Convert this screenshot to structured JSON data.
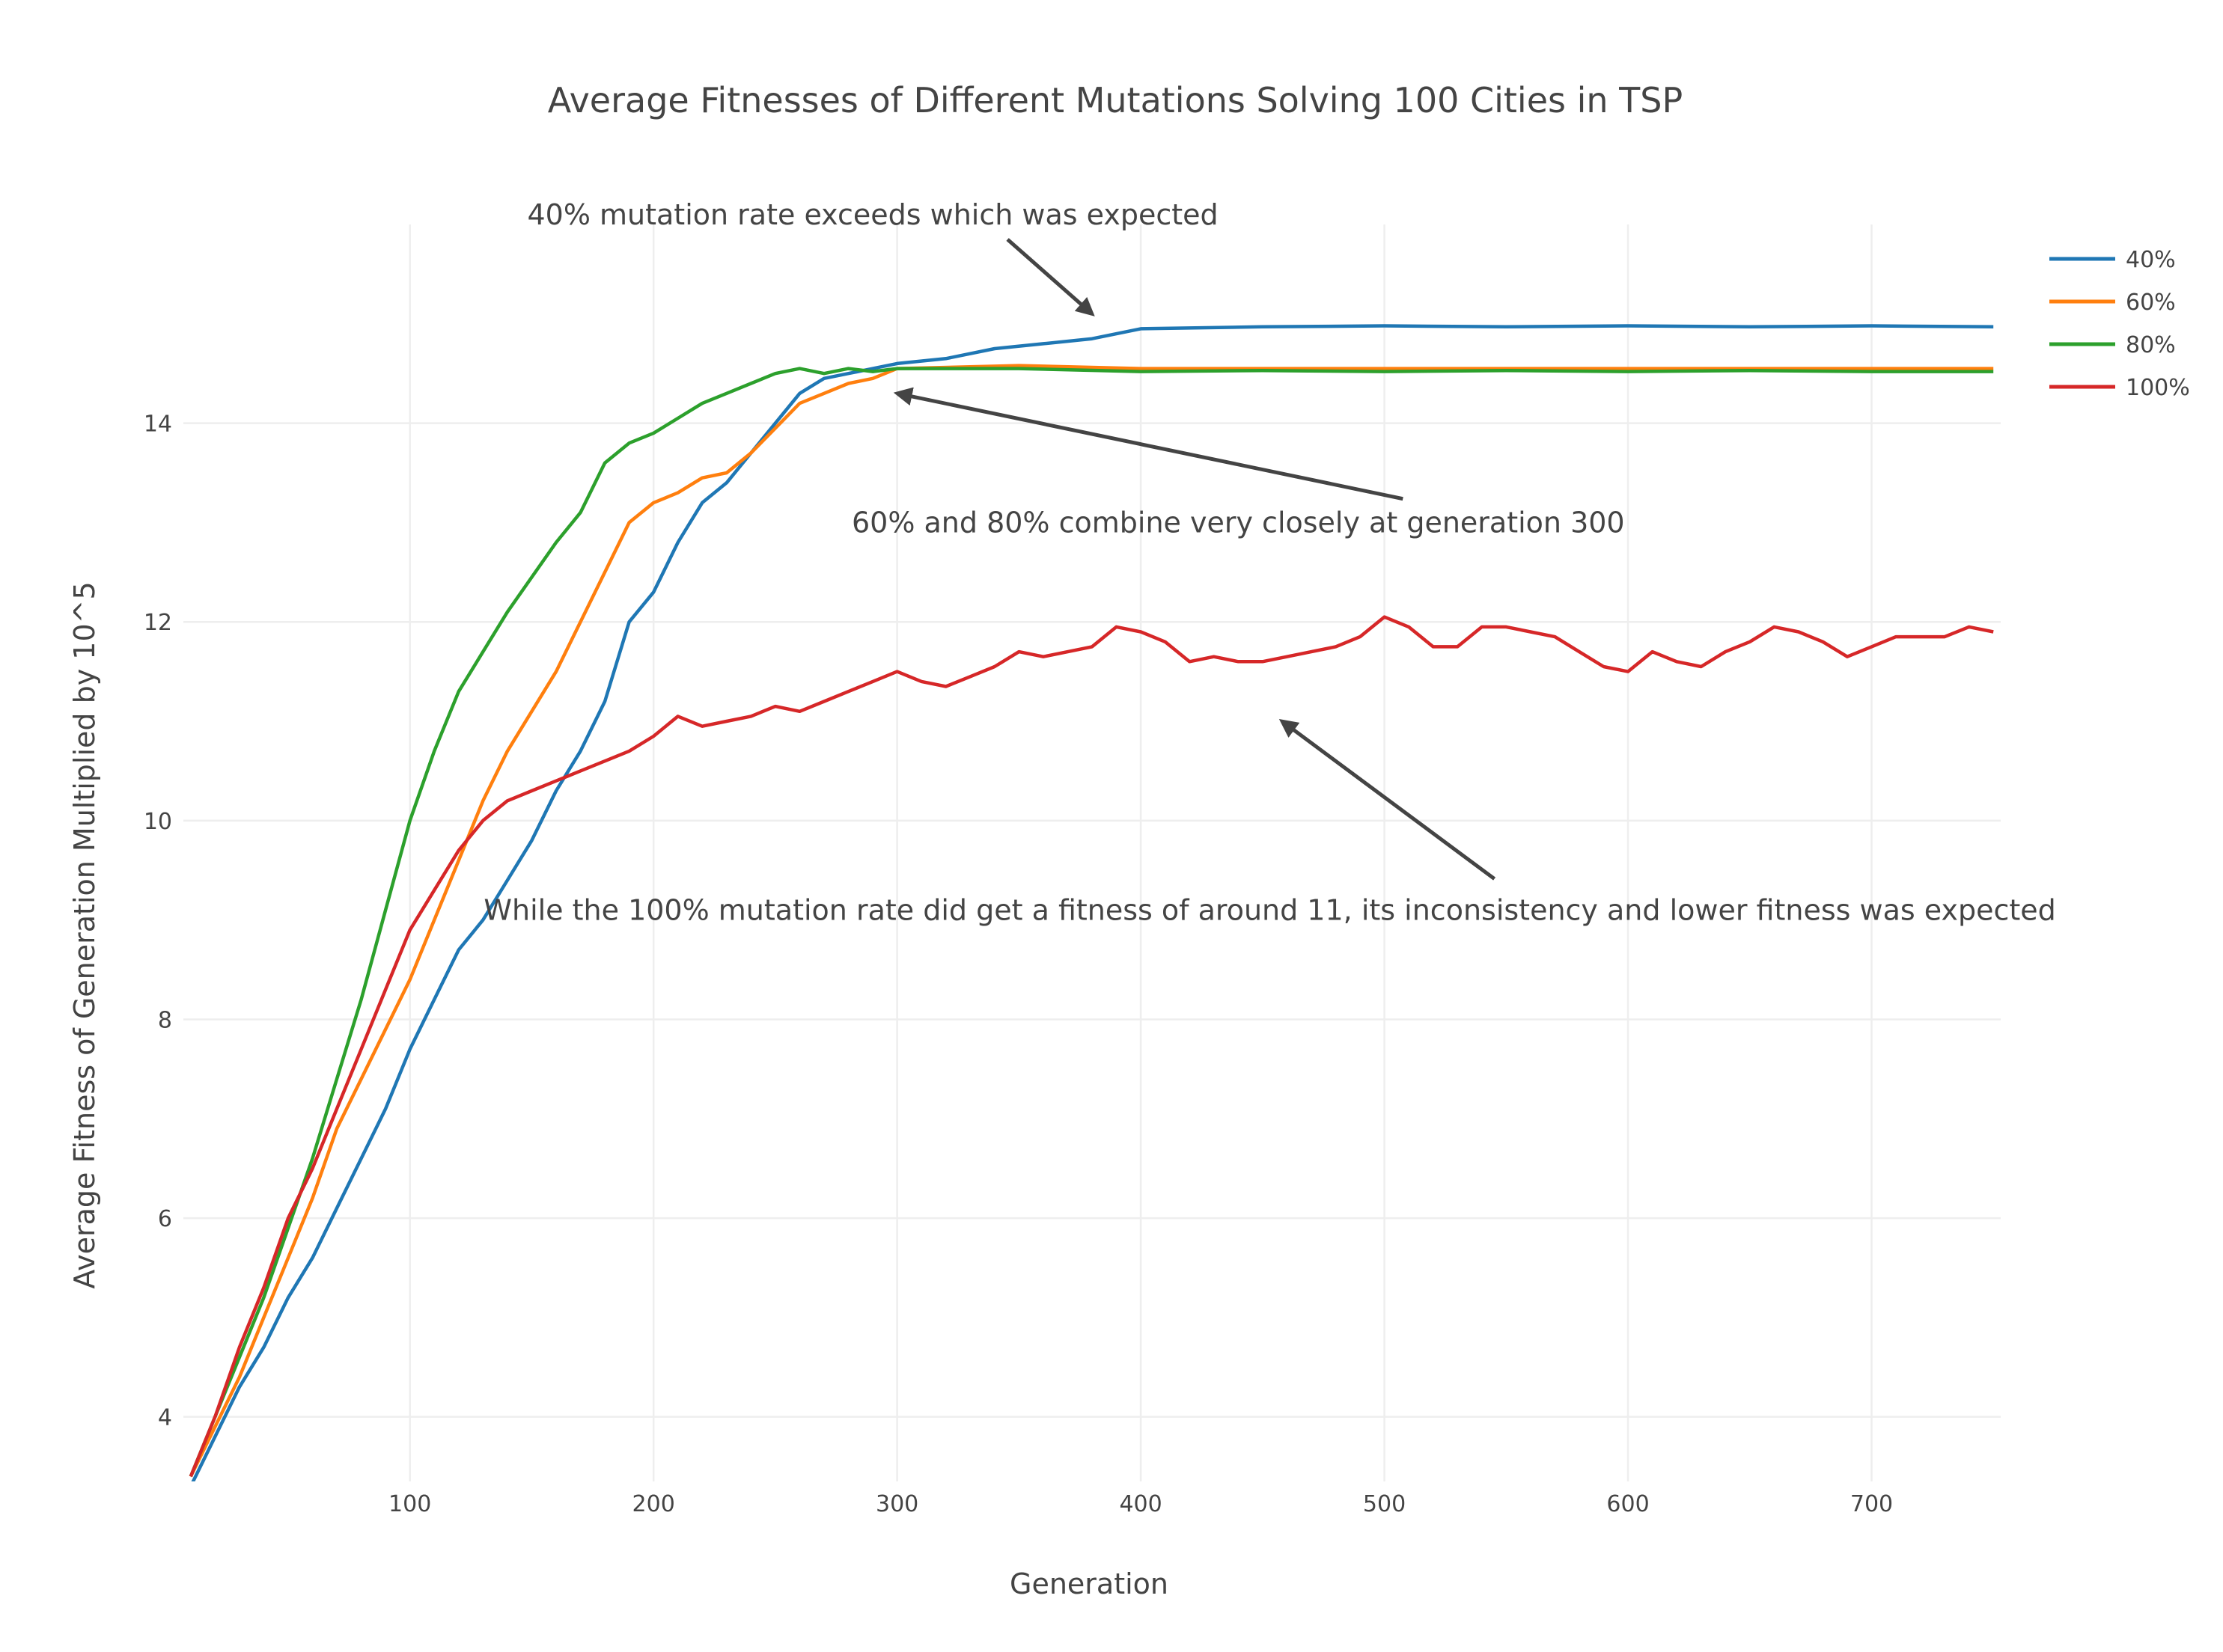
{
  "chart_data": {
    "type": "line",
    "title": "Average Fitnesses of Different Mutations Solving 100 Cities in TSP",
    "xlabel": "Generation",
    "ylabel": "Average Fitness of Generation Multiplied by 10^5",
    "xlim": [
      7,
      753
    ],
    "ylim": [
      3.35,
      16.0
    ],
    "xticks": [
      100,
      200,
      300,
      400,
      500,
      600,
      700
    ],
    "yticks": [
      4,
      6,
      8,
      10,
      12,
      14
    ],
    "xtick_labels": [
      "100",
      "200",
      "300",
      "400",
      "500",
      "600",
      "700"
    ],
    "ytick_labels": [
      "4",
      "6",
      "8",
      "10",
      "12",
      "14"
    ],
    "grid": true,
    "legend_position": "top-right",
    "series": [
      {
        "name": "40%",
        "color": "#1f77b4",
        "x": [
          10,
          20,
          30,
          40,
          50,
          60,
          70,
          80,
          90,
          100,
          110,
          120,
          130,
          140,
          150,
          160,
          170,
          180,
          190,
          200,
          210,
          220,
          230,
          240,
          250,
          260,
          270,
          280,
          290,
          300,
          320,
          340,
          360,
          380,
          400,
          450,
          500,
          550,
          600,
          650,
          700,
          750
        ],
        "y": [
          3.3,
          3.8,
          4.3,
          4.7,
          5.2,
          5.6,
          6.1,
          6.6,
          7.1,
          7.7,
          8.2,
          8.7,
          9.0,
          9.4,
          9.8,
          10.3,
          10.7,
          11.2,
          12.0,
          12.3,
          12.8,
          13.2,
          13.4,
          13.7,
          14.0,
          14.3,
          14.45,
          14.5,
          14.55,
          14.6,
          14.65,
          14.75,
          14.8,
          14.85,
          14.95,
          14.97,
          14.98,
          14.97,
          14.98,
          14.97,
          14.98,
          14.97
        ]
      },
      {
        "name": "60%",
        "color": "#ff7f0e",
        "x": [
          10,
          20,
          30,
          40,
          50,
          60,
          70,
          80,
          90,
          100,
          110,
          120,
          130,
          140,
          150,
          160,
          170,
          180,
          190,
          200,
          210,
          220,
          230,
          240,
          250,
          260,
          270,
          280,
          290,
          300,
          350,
          400,
          450,
          500,
          550,
          600,
          650,
          700,
          750
        ],
        "y": [
          3.4,
          3.9,
          4.4,
          5.0,
          5.6,
          6.2,
          6.9,
          7.4,
          7.9,
          8.4,
          9.0,
          9.6,
          10.2,
          10.7,
          11.1,
          11.5,
          12.0,
          12.5,
          13.0,
          13.2,
          13.3,
          13.45,
          13.5,
          13.7,
          13.95,
          14.2,
          14.3,
          14.4,
          14.45,
          14.55,
          14.58,
          14.55,
          14.55,
          14.55,
          14.55,
          14.55,
          14.55,
          14.55,
          14.55
        ]
      },
      {
        "name": "80%",
        "color": "#2ca02c",
        "x": [
          10,
          20,
          30,
          40,
          50,
          60,
          70,
          80,
          90,
          100,
          110,
          120,
          130,
          140,
          150,
          160,
          170,
          180,
          190,
          200,
          210,
          220,
          230,
          240,
          250,
          260,
          270,
          280,
          290,
          300,
          350,
          400,
          450,
          500,
          550,
          600,
          650,
          700,
          750
        ],
        "y": [
          3.4,
          4.0,
          4.6,
          5.2,
          5.9,
          6.6,
          7.4,
          8.2,
          9.1,
          10.0,
          10.7,
          11.3,
          11.7,
          12.1,
          12.45,
          12.8,
          13.1,
          13.6,
          13.8,
          13.9,
          14.05,
          14.2,
          14.3,
          14.4,
          14.5,
          14.55,
          14.5,
          14.55,
          14.52,
          14.55,
          14.55,
          14.52,
          14.53,
          14.52,
          14.53,
          14.52,
          14.53,
          14.52,
          14.52
        ]
      },
      {
        "name": "100%",
        "color": "#d62728",
        "x": [
          10,
          20,
          30,
          40,
          50,
          60,
          70,
          80,
          90,
          100,
          110,
          120,
          130,
          140,
          150,
          160,
          170,
          180,
          190,
          200,
          210,
          220,
          230,
          240,
          250,
          260,
          270,
          280,
          290,
          300,
          310,
          320,
          330,
          340,
          350,
          360,
          370,
          380,
          390,
          400,
          410,
          420,
          430,
          440,
          450,
          460,
          470,
          480,
          490,
          500,
          510,
          520,
          530,
          540,
          550,
          560,
          570,
          580,
          590,
          600,
          610,
          620,
          630,
          640,
          650,
          660,
          670,
          680,
          690,
          700,
          710,
          720,
          730,
          740,
          750
        ],
        "y": [
          3.4,
          4.0,
          4.7,
          5.3,
          6.0,
          6.5,
          7.1,
          7.7,
          8.3,
          8.9,
          9.3,
          9.7,
          10.0,
          10.2,
          10.3,
          10.4,
          10.5,
          10.6,
          10.7,
          10.85,
          11.05,
          10.95,
          11.0,
          11.05,
          11.15,
          11.1,
          11.2,
          11.3,
          11.4,
          11.5,
          11.4,
          11.35,
          11.45,
          11.55,
          11.7,
          11.65,
          11.7,
          11.75,
          11.95,
          11.9,
          11.8,
          11.6,
          11.65,
          11.6,
          11.6,
          11.65,
          11.7,
          11.75,
          11.85,
          12.05,
          11.95,
          11.75,
          11.75,
          11.95,
          11.95,
          11.9,
          11.85,
          11.7,
          11.55,
          11.5,
          11.7,
          11.6,
          11.55,
          11.7,
          11.8,
          11.95,
          11.9,
          11.8,
          11.65,
          11.75,
          11.85,
          11.85,
          11.85,
          11.95,
          11.9
        ]
      }
    ],
    "annotations": [
      {
        "text": "40% mutation rate exceeds which was expected",
        "x": 290,
        "y": 16.0,
        "ax": 380,
        "ay": 15.1
      },
      {
        "text": "60% and 80% combine very closely at generation 300",
        "x": 440,
        "y": 12.9,
        "ax": 300,
        "ay": 14.3
      },
      {
        "text": "While the 100% mutation rate did get a fitness of around 11, its inconsistency and lower fitness was expected",
        "x": 453,
        "y": 9.0,
        "ax": 458,
        "ay": 11.0
      }
    ]
  }
}
